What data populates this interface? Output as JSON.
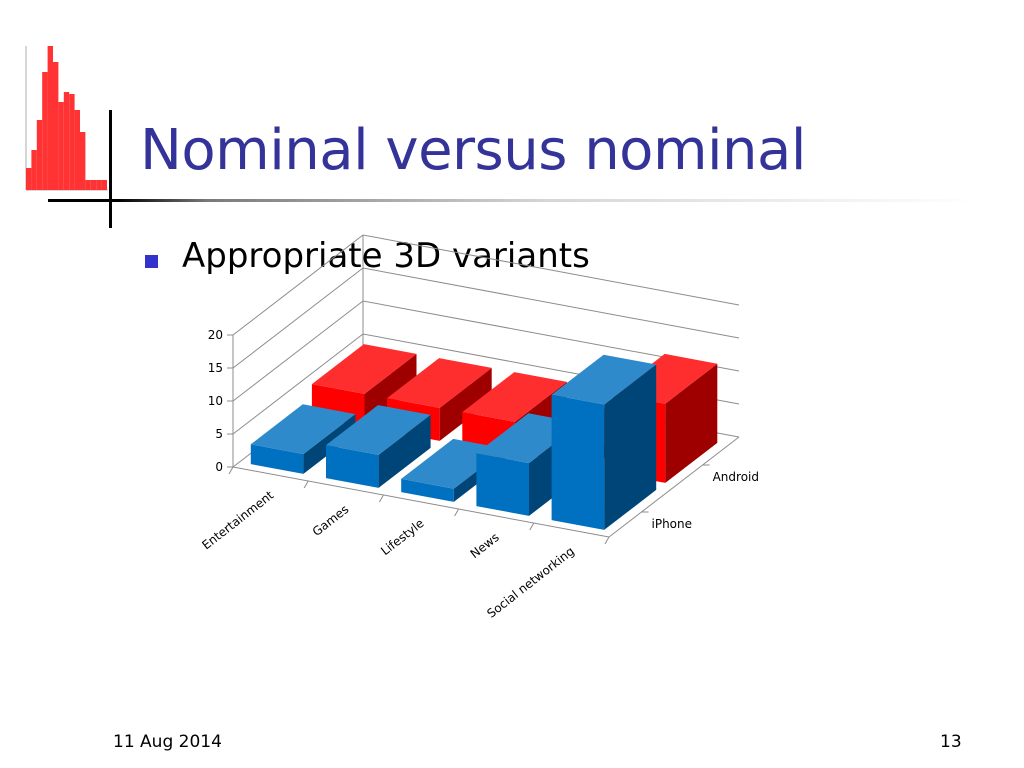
{
  "slide": {
    "title": "Nominal versus nominal",
    "bullets": [
      "Appropriate 3D variants"
    ],
    "footer_date": "11 Aug 2014",
    "page_number": "13"
  },
  "colors": {
    "title": "#333399",
    "bullet": "#3333cc",
    "series_iphone": "#0070c0",
    "series_android": "#ff0000",
    "decor_histogram": "#ff3333"
  },
  "chart_data": {
    "type": "bar",
    "subtype": "3d-column-depth",
    "categories": [
      "Entertainment",
      "Games",
      "Lifestyle",
      "News",
      "Social networking"
    ],
    "series": [
      {
        "name": "iPhone",
        "values": [
          3,
          5,
          2,
          8,
          19
        ]
      },
      {
        "name": "Android",
        "values": [
          5,
          5,
          5,
          2,
          12
        ]
      }
    ],
    "ylim": [
      0,
      20
    ],
    "yticks": [
      0,
      5,
      10,
      15,
      20
    ],
    "grid": true,
    "legend": "none",
    "depth_axis_labels": [
      "iPhone",
      "Android"
    ],
    "title": "",
    "xlabel": "",
    "ylabel": ""
  }
}
